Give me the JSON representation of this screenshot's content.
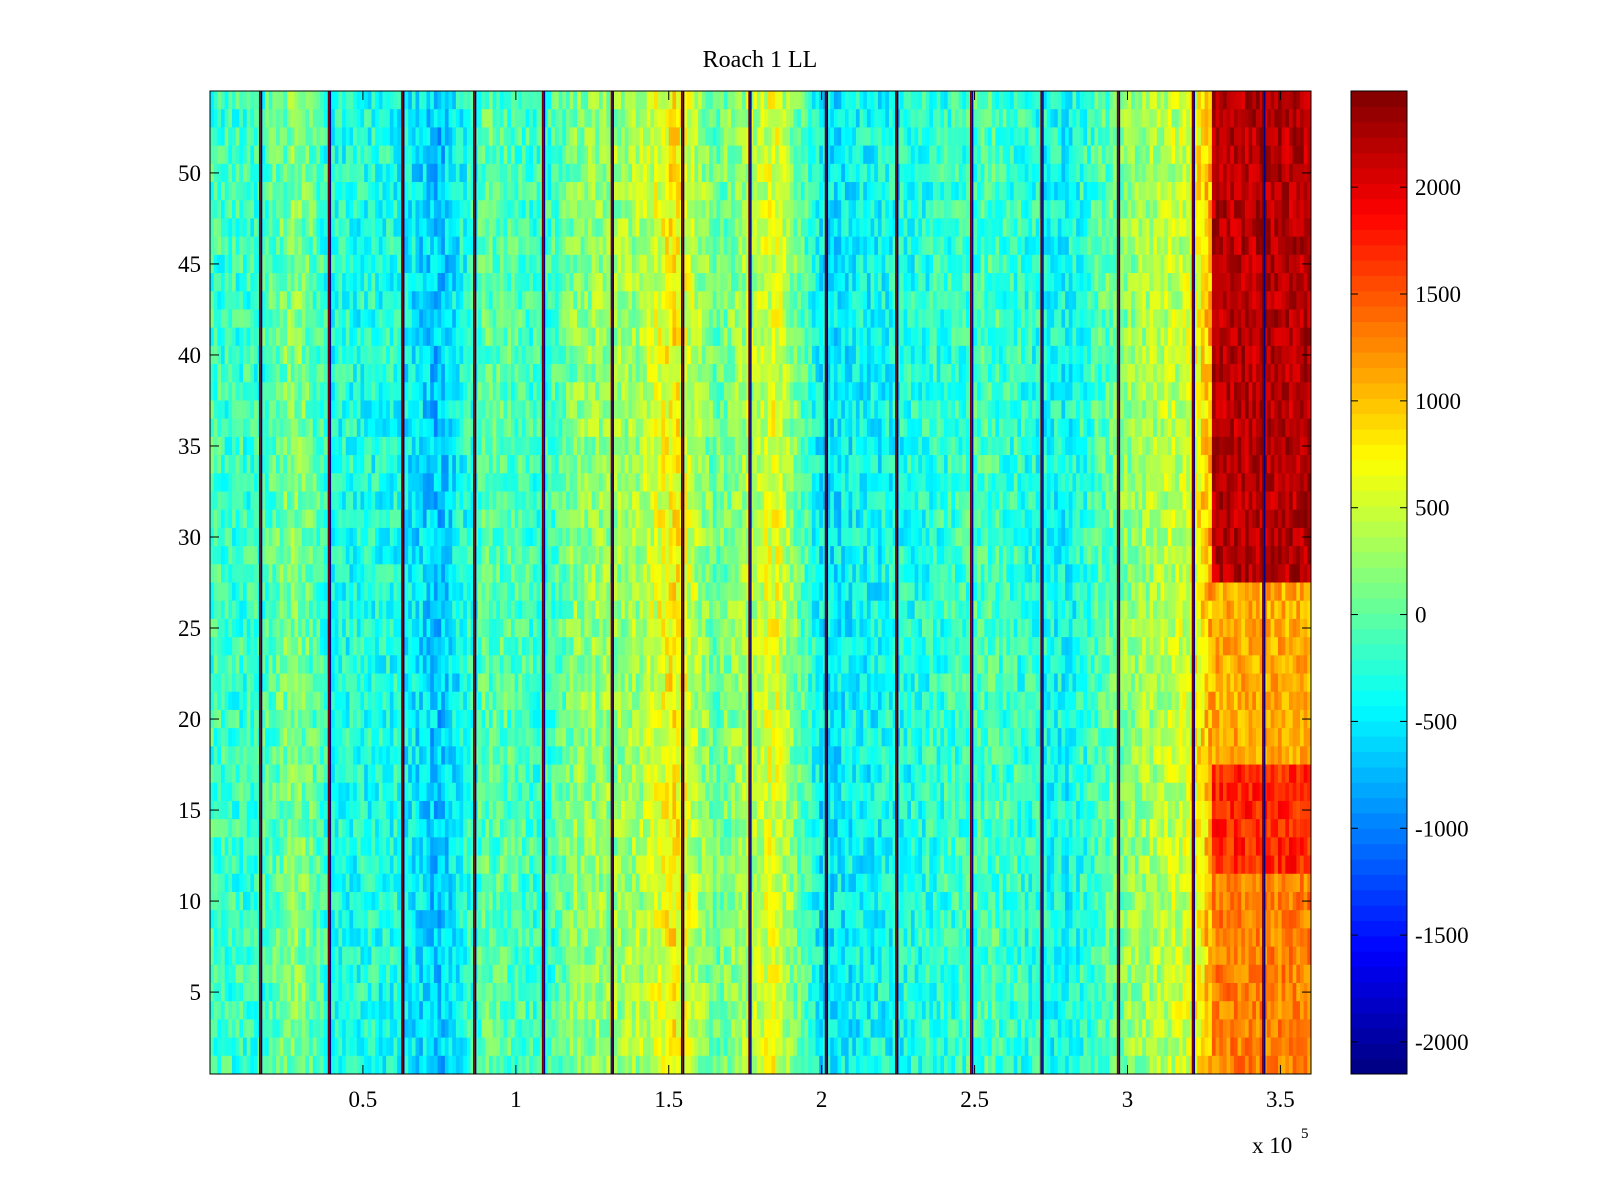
{
  "chart_data": {
    "type": "heatmap",
    "title": "Roach 1 LL",
    "xlabel": "",
    "ylabel": "",
    "x_exponent_label": "x 10",
    "x_exponent_power": "5",
    "xlim": [
      0,
      3.6
    ],
    "ylim": [
      0.5,
      54.5
    ],
    "x_ticks": [
      0.5,
      1,
      1.5,
      2,
      2.5,
      3,
      3.5
    ],
    "x_tick_labels": [
      "0.5",
      "1",
      "1.5",
      "2",
      "2.5",
      "3",
      "3.5"
    ],
    "y_ticks": [
      5,
      10,
      15,
      20,
      25,
      30,
      35,
      40,
      45,
      50
    ],
    "y_tick_labels": [
      "5",
      "10",
      "15",
      "20",
      "25",
      "30",
      "35",
      "40",
      "45",
      "50"
    ],
    "rows": 54,
    "colormap": "jet",
    "colorbar": {
      "clim": [
        -2150,
        2450
      ],
      "ticks": [
        -2000,
        -1500,
        -1000,
        -500,
        0,
        500,
        1000,
        1500,
        2000
      ],
      "tick_labels": [
        "-2000",
        "-1500",
        "-1000",
        "-500",
        "0",
        "500",
        "1000",
        "1500",
        "2000"
      ]
    },
    "grid": false,
    "trial_boundaries_x": [
      0.165,
      0.39,
      0.63,
      0.865,
      1.09,
      1.315,
      1.545,
      1.765,
      2.015,
      2.245,
      2.49,
      2.72,
      2.97,
      3.215,
      3.445
    ],
    "column_profile": [
      {
        "x": 0.0,
        "value": -150
      },
      {
        "x": 0.15,
        "value": -200
      },
      {
        "x": 0.28,
        "value": 200
      },
      {
        "x": 0.4,
        "value": -300
      },
      {
        "x": 0.6,
        "value": -300
      },
      {
        "x": 0.75,
        "value": -700
      },
      {
        "x": 0.9,
        "value": 0
      },
      {
        "x": 1.1,
        "value": -200
      },
      {
        "x": 1.2,
        "value": 200
      },
      {
        "x": 1.4,
        "value": 300
      },
      {
        "x": 1.52,
        "value": 800
      },
      {
        "x": 1.65,
        "value": 0
      },
      {
        "x": 1.85,
        "value": 600
      },
      {
        "x": 2.0,
        "value": -500
      },
      {
        "x": 2.3,
        "value": -300
      },
      {
        "x": 2.55,
        "value": -100
      },
      {
        "x": 2.8,
        "value": -400
      },
      {
        "x": 3.0,
        "value": 200
      },
      {
        "x": 3.2,
        "value": 500
      },
      {
        "x": 3.3,
        "value": 1300
      },
      {
        "x": 3.6,
        "value": 1400
      }
    ],
    "hot_region": {
      "x_range": [
        3.28,
        3.6
      ],
      "blocks": [
        {
          "y_range": [
            27.5,
            54.5
          ],
          "value": 2200
        },
        {
          "y_range": [
            17.5,
            27.5
          ],
          "value": 1100
        },
        {
          "y_range": [
            11.5,
            17.5
          ],
          "value": 1700
        },
        {
          "y_range": [
            0.5,
            11.5
          ],
          "value": 1300
        }
      ]
    }
  }
}
